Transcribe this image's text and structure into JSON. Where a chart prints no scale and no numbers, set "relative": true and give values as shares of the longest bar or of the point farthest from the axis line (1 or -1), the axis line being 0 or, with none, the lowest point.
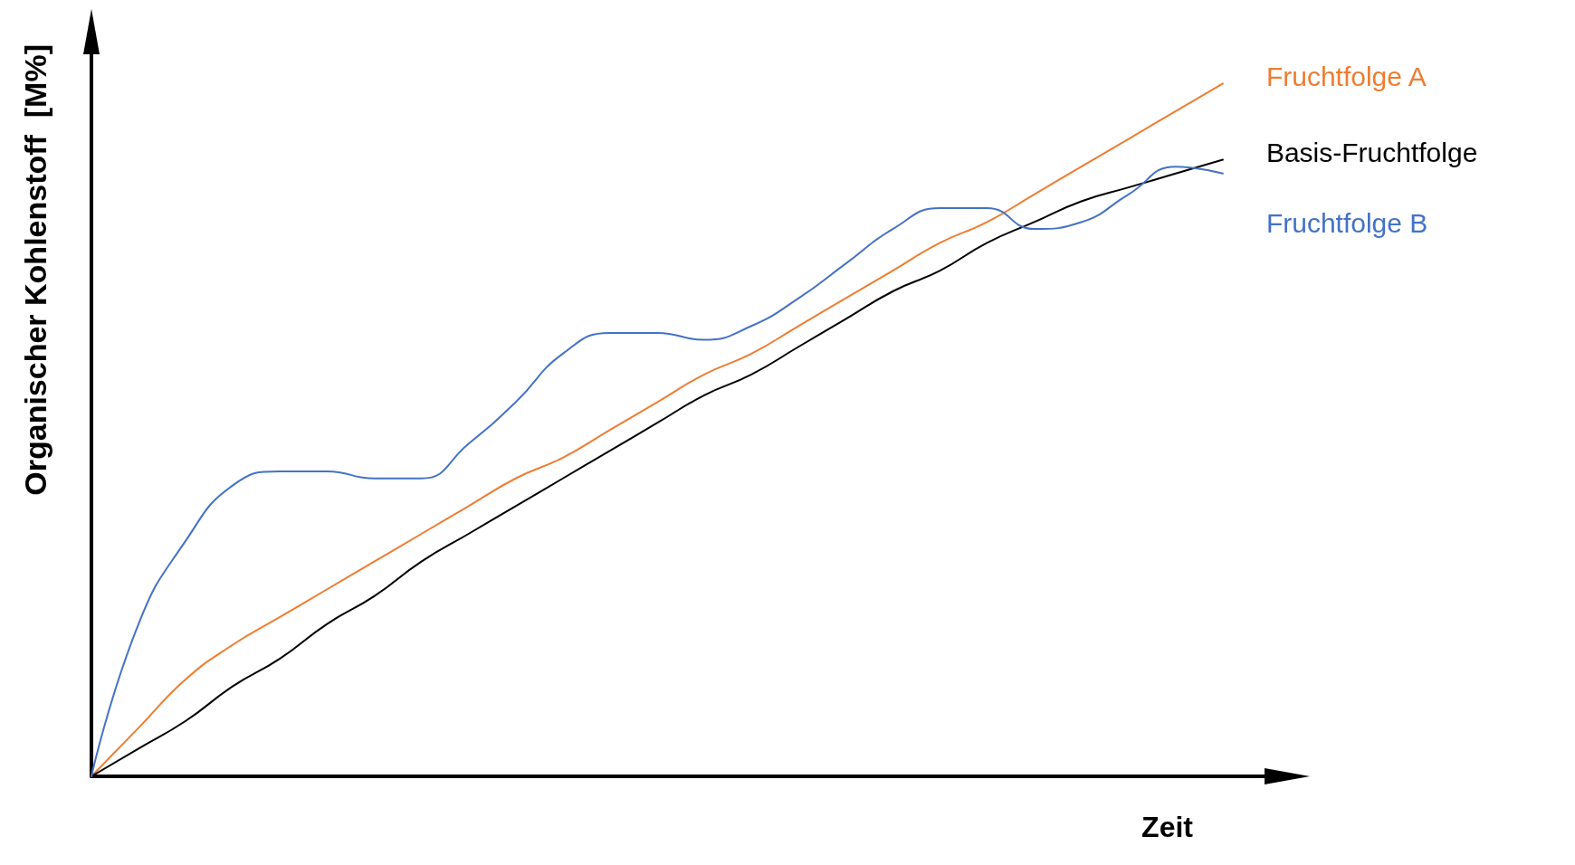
{
  "chart_data": {
    "type": "line",
    "relative": true,
    "xlabel": "Zeit",
    "ylabel": "Organischer Kohlenstoff  [M%]",
    "categories": [
      null,
      null,
      null,
      null,
      null,
      null,
      null,
      null,
      null,
      null,
      null,
      null,
      null,
      null,
      null,
      null,
      null,
      null,
      null,
      null,
      null,
      null,
      null,
      null,
      null,
      null
    ],
    "series": [
      {
        "name": "Fruchtfolge A",
        "color": "#ed7d31",
        "values": [
          0,
          0.07,
          0.14,
          0.19,
          0.23,
          0.27,
          0.31,
          0.35,
          0.39,
          0.43,
          0.46,
          0.5,
          0.54,
          0.58,
          0.61,
          0.65,
          0.69,
          0.73,
          0.77,
          0.8,
          0.84,
          0.88,
          0.92,
          0.96,
          1,
          null
        ]
      },
      {
        "name": "Basis-Fruchtfolge",
        "color": "#000000",
        "values": [
          0,
          0.04,
          0.08,
          0.13,
          0.17,
          0.22,
          0.26,
          0.31,
          0.35,
          0.39,
          0.43,
          0.47,
          0.51,
          0.55,
          0.58,
          0.62,
          0.66,
          0.7,
          0.73,
          0.77,
          0.8,
          0.83,
          0.85,
          0.87,
          0.89,
          null
        ]
      },
      {
        "name": "Fruchtfolge B",
        "color": "#4472c4",
        "values": [
          0,
          0.22,
          0.34,
          0.42,
          0.44,
          0.44,
          0.43,
          0.43,
          0.48,
          0.54,
          0.61,
          0.64,
          0.64,
          0.63,
          0.65,
          0.69,
          0.74,
          0.79,
          0.82,
          0.82,
          0.79,
          0.8,
          0.84,
          0.88,
          0.87,
          null
        ]
      }
    ],
    "legend": false,
    "grid": false,
    "marker": "none",
    "line_style": "solid"
  }
}
